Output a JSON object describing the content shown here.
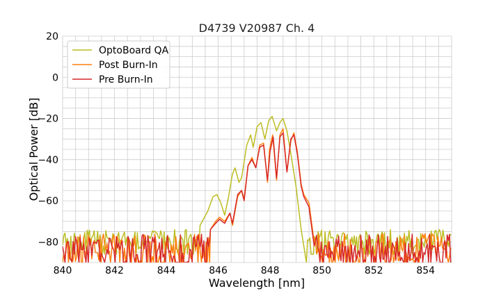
{
  "chart_data": {
    "type": "line",
    "title": "D4739 V20987 Ch. 4",
    "xlabel": "Wavelength [nm]",
    "ylabel": "Optical Power [dB]",
    "xlim": [
      840,
      855
    ],
    "ylim": [
      -90,
      20
    ],
    "xticks": [
      840,
      842,
      844,
      846,
      848,
      850,
      852,
      854
    ],
    "yticks": [
      20,
      0,
      -20,
      -40,
      -60,
      -80
    ],
    "minor_x_step": 0.5,
    "minor_y_step": 5,
    "grid": true,
    "legend_position": "top-left",
    "noise_floor": -76,
    "series": [
      {
        "name": "OptoBoard QA",
        "color": "#bcbd22",
        "points": [
          [
            845.3,
            -72
          ],
          [
            845.6,
            -65
          ],
          [
            845.8,
            -58
          ],
          [
            845.95,
            -57
          ],
          [
            846.1,
            -61
          ],
          [
            846.25,
            -67
          ],
          [
            846.4,
            -58
          ],
          [
            846.55,
            -47
          ],
          [
            846.65,
            -44
          ],
          [
            846.8,
            -51
          ],
          [
            846.9,
            -49
          ],
          [
            847.1,
            -33
          ],
          [
            847.25,
            -28
          ],
          [
            847.35,
            -34
          ],
          [
            847.5,
            -24
          ],
          [
            847.65,
            -22
          ],
          [
            847.8,
            -30
          ],
          [
            847.95,
            -21
          ],
          [
            848.08,
            -19
          ],
          [
            848.25,
            -26
          ],
          [
            848.38,
            -22
          ],
          [
            848.5,
            -20
          ],
          [
            848.65,
            -26
          ],
          [
            848.8,
            -37
          ],
          [
            849.0,
            -53
          ],
          [
            849.2,
            -74
          ],
          [
            849.4,
            -90
          ]
        ]
      },
      {
        "name": "Post Burn-In",
        "color": "#ff7f0e",
        "points": [
          [
            845.7,
            -74
          ],
          [
            845.9,
            -70
          ],
          [
            846.05,
            -68
          ],
          [
            846.25,
            -70
          ],
          [
            846.45,
            -66
          ],
          [
            846.55,
            -72
          ],
          [
            846.75,
            -58
          ],
          [
            846.9,
            -55
          ],
          [
            847.0,
            -59
          ],
          [
            847.15,
            -43
          ],
          [
            847.3,
            -39
          ],
          [
            847.45,
            -44
          ],
          [
            847.6,
            -33
          ],
          [
            847.75,
            -32
          ],
          [
            847.9,
            -51
          ],
          [
            847.98,
            -35
          ],
          [
            848.1,
            -28
          ],
          [
            848.25,
            -50
          ],
          [
            848.38,
            -28
          ],
          [
            848.5,
            -25
          ],
          [
            848.65,
            -46
          ],
          [
            848.8,
            -31
          ],
          [
            848.92,
            -27
          ],
          [
            849.05,
            -36
          ],
          [
            849.2,
            -52
          ],
          [
            849.3,
            -57
          ],
          [
            849.5,
            -61
          ],
          [
            849.7,
            -80
          ]
        ]
      },
      {
        "name": "Pre Burn-In",
        "color": "#d62728",
        "points": [
          [
            845.7,
            -74
          ],
          [
            845.9,
            -71
          ],
          [
            846.05,
            -69
          ],
          [
            846.25,
            -71
          ],
          [
            846.45,
            -66
          ],
          [
            846.55,
            -71
          ],
          [
            846.75,
            -57
          ],
          [
            846.9,
            -55
          ],
          [
            847.0,
            -60
          ],
          [
            847.15,
            -43
          ],
          [
            847.3,
            -40
          ],
          [
            847.45,
            -44
          ],
          [
            847.6,
            -34
          ],
          [
            847.75,
            -33
          ],
          [
            847.9,
            -50
          ],
          [
            848.0,
            -36
          ],
          [
            848.12,
            -29
          ],
          [
            848.25,
            -49
          ],
          [
            848.38,
            -29
          ],
          [
            848.5,
            -27
          ],
          [
            848.65,
            -46
          ],
          [
            848.8,
            -30
          ],
          [
            848.92,
            -28
          ],
          [
            849.05,
            -37
          ],
          [
            849.2,
            -53
          ],
          [
            849.3,
            -58
          ],
          [
            849.5,
            -63
          ],
          [
            849.7,
            -82
          ]
        ]
      }
    ]
  }
}
